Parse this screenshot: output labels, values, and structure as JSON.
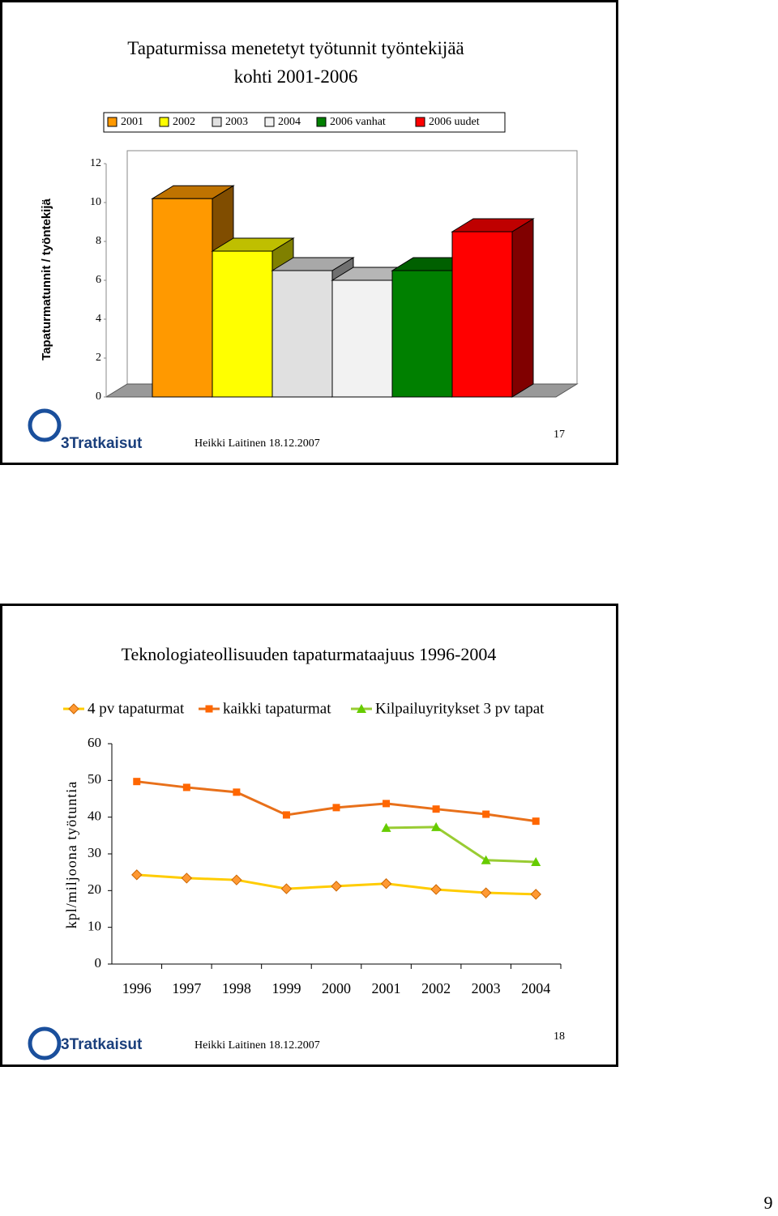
{
  "chart_data": [
    {
      "type": "bar3d",
      "title": "Tapaturmissa menetetyt työtunnit työntekijää kohti 2001-2006",
      "y_label": "Tapaturmatunnit / työntekijä",
      "series": [
        {
          "name": "2001",
          "color": "#ff9900",
          "values": [
            10.2
          ]
        },
        {
          "name": "2002",
          "color": "#ffff00",
          "values": [
            7.5
          ]
        },
        {
          "name": "2003",
          "color": "#e0e0e0",
          "values": [
            6.5
          ]
        },
        {
          "name": "2004",
          "color": "#f2f2f2",
          "values": [
            6.0
          ]
        },
        {
          "name": "2006 vanhat",
          "color": "#008000",
          "values": [
            6.5
          ]
        },
        {
          "name": "2006 uudet",
          "color": "#ff0000",
          "values": [
            8.5
          ]
        }
      ],
      "ylim": [
        0,
        12
      ],
      "yticks": [
        0,
        2,
        4,
        6,
        8,
        10,
        12
      ]
    },
    {
      "type": "line",
      "title": "Teknologiateollisuuden tapaturmataajuus 1996-2004",
      "y_label": "kpl/miljoona työtuntia",
      "categories": [
        "1996",
        "1997",
        "1998",
        "1999",
        "2000",
        "2001",
        "2002",
        "2003",
        "2004"
      ],
      "series": [
        {
          "name": "4 pv tapaturmat",
          "color": "#ffcc00",
          "marker": "diamond",
          "marker_color": "#ff9933",
          "values": [
            24.3,
            23.4,
            22.9,
            20.5,
            21.2,
            21.9,
            20.3,
            19.4,
            19.0
          ]
        },
        {
          "name": "kaikki tapaturmat",
          "color": "#e8701a",
          "marker": "square",
          "marker_color": "#ff6600",
          "values": [
            49.7,
            48.1,
            46.8,
            40.6,
            42.6,
            43.7,
            42.2,
            40.8,
            38.9
          ]
        },
        {
          "name": "Kilpailuyritykset 3 pv tapat",
          "color": "#99cc33",
          "marker": "triangle",
          "marker_color": "#66cc00",
          "values": [
            null,
            null,
            null,
            null,
            null,
            37.1,
            37.3,
            28.3,
            27.8
          ]
        }
      ],
      "ylim": [
        0,
        60
      ],
      "yticks": [
        0,
        10,
        20,
        30,
        40,
        50,
        60
      ]
    }
  ],
  "slides": [
    {
      "logo": "3Tratkaisut",
      "footer": "Heikki Laitinen 18.12.2007",
      "number": "17"
    },
    {
      "logo": "3Tratkaisut",
      "footer": "Heikki Laitinen 18.12.2007",
      "number": "18"
    }
  ],
  "page_number": "9"
}
